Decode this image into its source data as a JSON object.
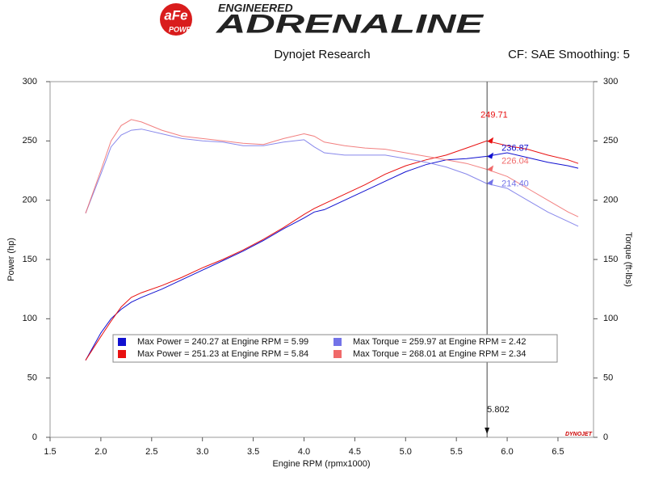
{
  "header": {
    "logo_mark": "aFe",
    "logo_sub": "POWER",
    "brand_top": "ENGINEERED",
    "brand": "ADRENALINE",
    "left_caption": "Dynojet Research",
    "right_caption": "CF: SAE Smoothing: 5",
    "watermark": "DYNOJET"
  },
  "chart_data": {
    "type": "line",
    "x_label": "Engine RPM (rpmx1000)",
    "y_label": "Power (hp)",
    "y2_label": "Torque (ft-lbs)",
    "x": [
      1.85,
      2.0,
      2.1,
      2.2,
      2.3,
      2.4,
      2.6,
      2.8,
      3.0,
      3.2,
      3.4,
      3.6,
      3.8,
      4.0,
      4.1,
      4.2,
      4.4,
      4.6,
      4.8,
      5.0,
      5.2,
      5.4,
      5.6,
      5.8,
      6.0,
      6.2,
      6.4,
      6.6,
      6.7
    ],
    "xlim": [
      1.5,
      6.85
    ],
    "xticks": [
      1.5,
      {
        "value": 2,
        "label": "2.0"
      },
      2.5,
      {
        "value": 3,
        "label": "3.0"
      },
      3.5,
      {
        "value": 4,
        "label": "4.0"
      },
      4.5,
      {
        "value": 5,
        "label": "5.0"
      },
      5.5,
      {
        "value": 6,
        "label": "6.0"
      },
      6.5
    ],
    "ylim": [
      0,
      300
    ],
    "yticks": [
      0,
      50,
      100,
      150,
      200,
      250,
      300
    ],
    "y2lim": [
      0,
      300
    ],
    "y2ticks": [
      0,
      50,
      100,
      150,
      200,
      250,
      300
    ],
    "cursor_x": 5.802,
    "series": [
      {
        "name": "Max Power = 240.27 at Engine RPM = 5.99",
        "color": "#1010d0",
        "cursor_value": 236.87,
        "values": [
          65,
          88,
          100,
          108,
          114,
          118,
          125,
          133,
          141,
          149,
          157,
          166,
          176,
          185,
          190,
          192,
          200,
          208,
          216,
          224,
          230,
          234,
          235,
          237,
          240,
          236,
          232,
          229,
          227
        ]
      },
      {
        "name": "Max Power = 251.23 at Engine RPM = 5.84",
        "color": "#e81010",
        "cursor_value": 249.71,
        "values": [
          65,
          85,
          98,
          110,
          118,
          122,
          128,
          135,
          143,
          150,
          158,
          167,
          177,
          188,
          193,
          197,
          205,
          213,
          222,
          229,
          234,
          238,
          244,
          250,
          246,
          243,
          238,
          234,
          231
        ]
      },
      {
        "name": "Max Torque = 259.97 at Engine RPM = 2.42",
        "color": "#7373e8",
        "axis": "y2",
        "cursor_value": 214.4,
        "cursor_value_label": "214.40",
        "values": [
          189,
          222,
          245,
          255,
          259,
          260,
          256,
          252,
          250,
          249,
          246,
          246,
          249,
          251,
          245,
          240,
          238,
          238,
          238,
          235,
          232,
          228,
          222,
          214,
          210,
          200,
          190,
          182,
          178
        ]
      },
      {
        "name": "Max Torque = 268.01 at Engine RPM = 2.34",
        "color": "#f06a6a",
        "axis": "y2",
        "cursor_value": 226.04,
        "values": [
          189,
          225,
          250,
          263,
          268,
          266,
          259,
          254,
          252,
          250,
          248,
          247,
          252,
          256,
          254,
          249,
          246,
          244,
          243,
          240,
          237,
          234,
          231,
          226,
          220,
          210,
          200,
          190,
          186
        ]
      }
    ]
  }
}
